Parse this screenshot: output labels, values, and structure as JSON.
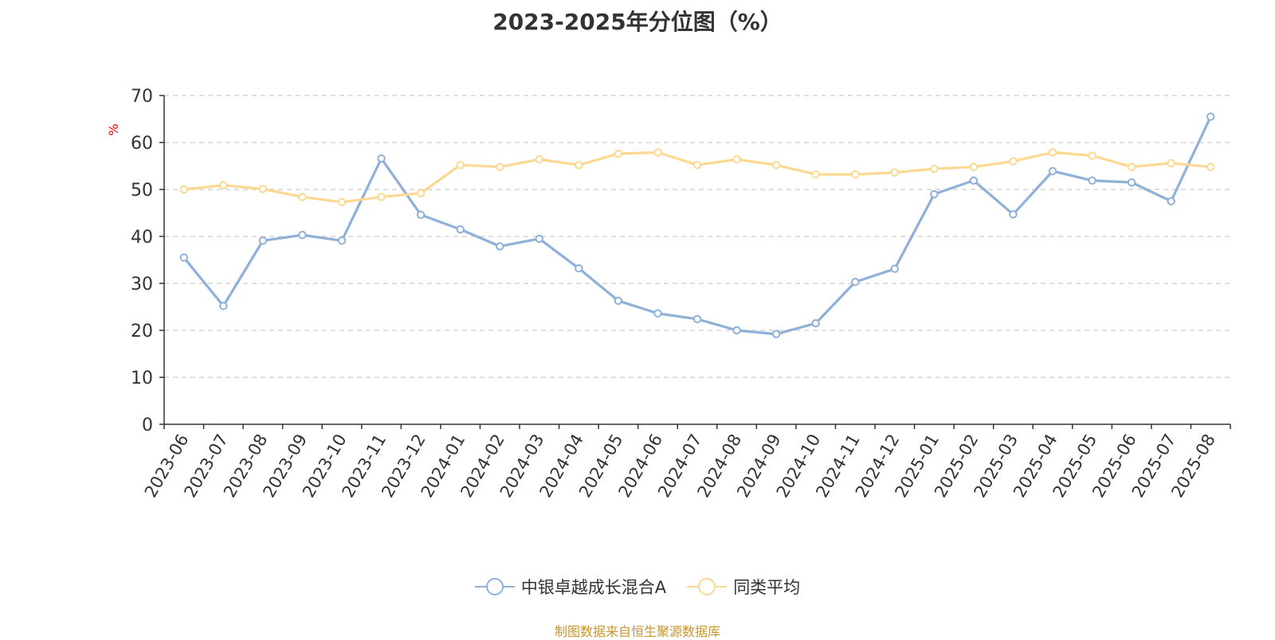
{
  "title": "2023-2025年分位图（%）",
  "source": "制图数据来自恒生聚源数据库",
  "colors": {
    "series1": "#8fb0d9",
    "series2": "#fcd893",
    "axis": "#333333",
    "grid": "#cccccc",
    "ylabel": "#ff0000",
    "source": "#c8962e"
  },
  "chart_data": {
    "type": "line",
    "title": "2023-2025年分位图（%）",
    "ylabel": "%",
    "xlabel": "",
    "ylim": [
      0,
      70
    ],
    "yticks": [
      0,
      10,
      20,
      30,
      40,
      50,
      60,
      70
    ],
    "grid": true,
    "legend_position": "bottom-center",
    "categories": [
      "2023-06",
      "2023-07",
      "2023-08",
      "2023-09",
      "2023-10",
      "2023-11",
      "2023-12",
      "2024-01",
      "2024-02",
      "2024-03",
      "2024-04",
      "2024-05",
      "2024-06",
      "2024-07",
      "2024-08",
      "2024-09",
      "2024-10",
      "2024-11",
      "2024-12",
      "2025-01",
      "2025-02",
      "2025-03",
      "2025-04",
      "2025-05",
      "2025-06",
      "2025-07",
      "2025-08"
    ],
    "series": [
      {
        "name": "中银卓越成长混合A",
        "values": [
          35.5,
          25.2,
          39.1,
          40.3,
          39.1,
          56.6,
          44.6,
          41.5,
          37.9,
          39.5,
          33.2,
          26.3,
          23.6,
          22.4,
          20.0,
          19.2,
          21.5,
          30.3,
          33.1,
          49.0,
          51.9,
          44.7,
          53.9,
          51.9,
          51.5,
          47.5,
          65.5
        ]
      },
      {
        "name": "同类平均",
        "values": [
          50.0,
          50.9,
          50.1,
          48.4,
          47.3,
          48.4,
          49.2,
          55.2,
          54.8,
          56.4,
          55.2,
          57.6,
          57.9,
          55.2,
          56.4,
          55.2,
          53.2,
          53.2,
          53.6,
          54.4,
          54.8,
          56.0,
          57.9,
          57.2,
          54.8,
          55.6,
          54.8
        ]
      }
    ]
  }
}
